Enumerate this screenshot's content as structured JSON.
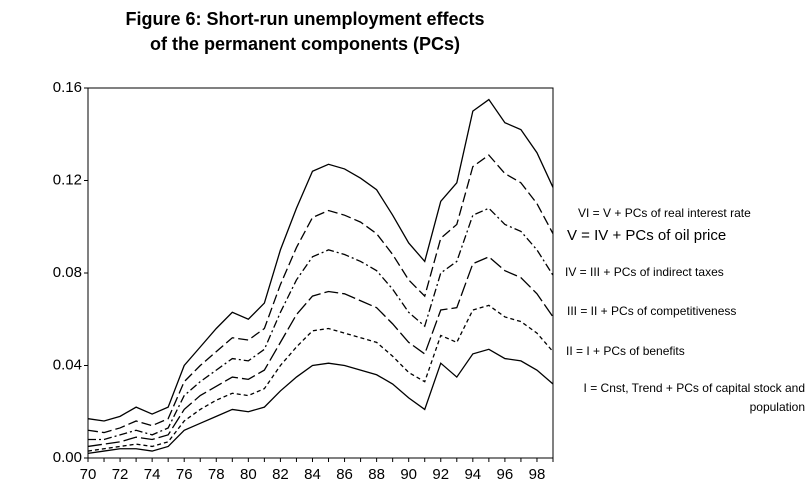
{
  "chart_data": {
    "type": "line",
    "title": [
      "Figure 6: Short-run unemployment effects",
      "of the permanent components (PCs)"
    ],
    "x": [
      70,
      71,
      72,
      73,
      74,
      75,
      76,
      77,
      78,
      79,
      80,
      81,
      82,
      83,
      84,
      85,
      86,
      87,
      88,
      89,
      90,
      91,
      92,
      93,
      94,
      95,
      96,
      97,
      98,
      99
    ],
    "xlim": [
      70,
      99
    ],
    "xticks": [
      70,
      72,
      74,
      76,
      78,
      80,
      82,
      84,
      86,
      88,
      90,
      92,
      94,
      96,
      98
    ],
    "ylim": [
      0,
      0.16
    ],
    "yticks": [
      {
        "value": 0,
        "label": "0.00"
      },
      0.04,
      0.08,
      0.12,
      0.16
    ],
    "series": [
      {
        "name": "VI = V + PCs of real interest rate",
        "color": "#000000",
        "dash": "none",
        "values": [
          0.017,
          0.016,
          0.018,
          0.022,
          0.019,
          0.022,
          0.04,
          0.048,
          0.056,
          0.063,
          0.06,
          0.067,
          0.09,
          0.108,
          0.124,
          0.127,
          0.125,
          0.121,
          0.116,
          0.105,
          0.093,
          0.085,
          0.111,
          0.119,
          0.15,
          0.155,
          0.145,
          0.142,
          0.132,
          0.117
        ]
      },
      {
        "name": "V = IV + PCs of oil price",
        "color": "#000000",
        "dash": "10,4",
        "values": [
          0.012,
          0.011,
          0.013,
          0.016,
          0.014,
          0.017,
          0.033,
          0.04,
          0.046,
          0.052,
          0.051,
          0.056,
          0.075,
          0.091,
          0.104,
          0.107,
          0.105,
          0.102,
          0.097,
          0.088,
          0.077,
          0.07,
          0.095,
          0.101,
          0.126,
          0.131,
          0.123,
          0.119,
          0.11,
          0.097
        ]
      },
      {
        "name": "IV = III + PCs of indirect taxes",
        "color": "#000000",
        "dash": "8,3,2,3",
        "values": [
          0.008,
          0.008,
          0.01,
          0.012,
          0.01,
          0.013,
          0.027,
          0.033,
          0.038,
          0.043,
          0.042,
          0.047,
          0.063,
          0.077,
          0.087,
          0.09,
          0.088,
          0.085,
          0.081,
          0.073,
          0.063,
          0.057,
          0.08,
          0.085,
          0.105,
          0.108,
          0.101,
          0.098,
          0.09,
          0.079
        ]
      },
      {
        "name": "III = II + PCs of competitiveness",
        "color": "#000000",
        "dash": "14,4",
        "values": [
          0.005,
          0.006,
          0.007,
          0.009,
          0.008,
          0.01,
          0.021,
          0.027,
          0.031,
          0.035,
          0.034,
          0.038,
          0.05,
          0.062,
          0.07,
          0.072,
          0.071,
          0.068,
          0.065,
          0.058,
          0.05,
          0.045,
          0.064,
          0.065,
          0.084,
          0.087,
          0.081,
          0.078,
          0.071,
          0.061
        ]
      },
      {
        "name": "II = I + PCs of benefits",
        "color": "#000000",
        "dash": "4,3",
        "values": [
          0.003,
          0.004,
          0.005,
          0.006,
          0.005,
          0.007,
          0.016,
          0.021,
          0.025,
          0.028,
          0.027,
          0.03,
          0.04,
          0.048,
          0.055,
          0.056,
          0.054,
          0.052,
          0.05,
          0.044,
          0.037,
          0.033,
          0.053,
          0.05,
          0.064,
          0.066,
          0.061,
          0.059,
          0.054,
          0.046
        ]
      },
      {
        "name": "I = Cnst, Trend + PCs of capital stock and population",
        "color": "#000000",
        "dash": "none",
        "values": [
          0.002,
          0.003,
          0.004,
          0.004,
          0.003,
          0.005,
          0.012,
          0.015,
          0.018,
          0.021,
          0.02,
          0.022,
          0.029,
          0.035,
          0.04,
          0.041,
          0.04,
          0.038,
          0.036,
          0.032,
          0.026,
          0.021,
          0.041,
          0.035,
          0.045,
          0.047,
          0.043,
          0.042,
          0.038,
          0.032
        ]
      }
    ]
  }
}
